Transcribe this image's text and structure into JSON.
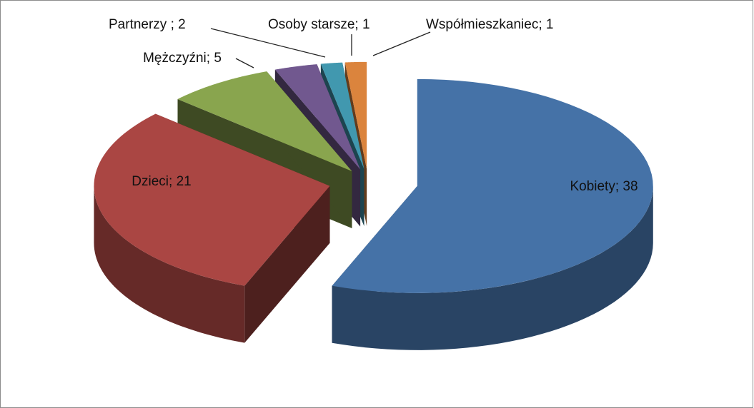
{
  "chart_data": {
    "type": "pie3d",
    "values": [
      38,
      21,
      5,
      2,
      1,
      1
    ],
    "value_labels": [
      "Kobiety; 38",
      "Dzieci; 21",
      "Mężczyźni; 5",
      "Partnerzy ; 2",
      "Osoby starsze; 1",
      "Współmieszkaniec; 1"
    ],
    "colors": [
      "#4572a7",
      "#aa4643",
      "#89a54e",
      "#71588f",
      "#4198af",
      "#db843d"
    ]
  }
}
